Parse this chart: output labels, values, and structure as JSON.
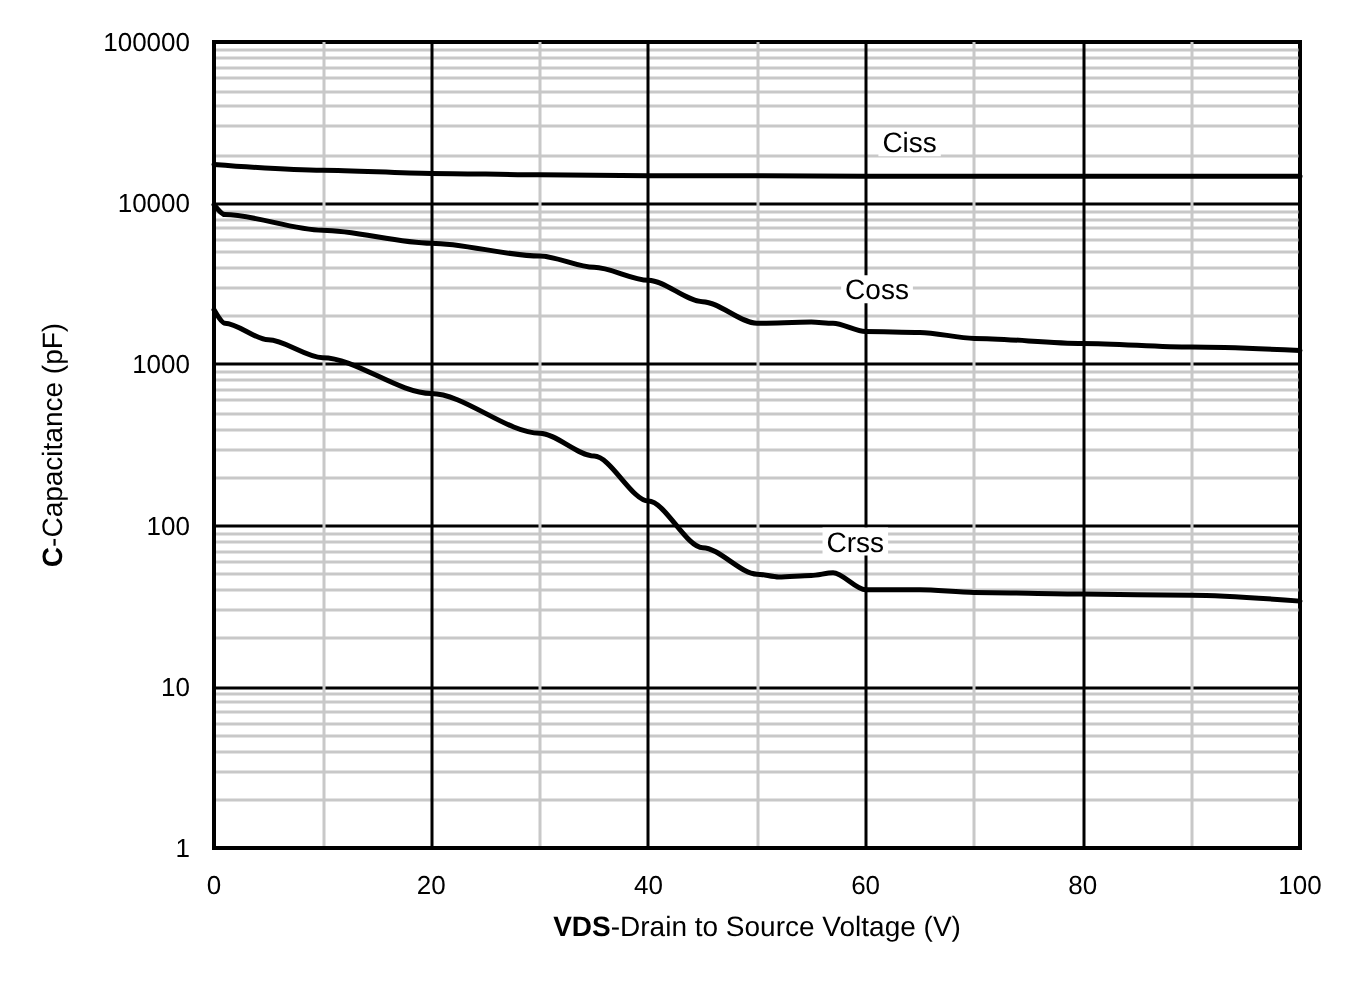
{
  "chart_data": {
    "type": "line",
    "xlabel": "VDS-Drain to Source Voltage (V)",
    "ylabel": "C-Capacitance (pF)",
    "series": [
      {
        "name": "Ciss",
        "color": "#000000",
        "x": [
          0,
          10,
          20,
          30,
          40,
          50,
          60,
          70,
          80,
          90,
          100
        ],
        "values": [
          17400,
          16000,
          15300,
          15000,
          14800,
          14800,
          14700,
          14700,
          14700,
          14700,
          14700
        ]
      },
      {
        "name": "Coss",
        "color": "#000000",
        "x": [
          0,
          1,
          10,
          20,
          30,
          35,
          40,
          45,
          50,
          55,
          57,
          60,
          65,
          70,
          80,
          90,
          100
        ],
        "values": [
          9800,
          8500,
          6800,
          5650,
          4700,
          4000,
          3330,
          2450,
          1800,
          1830,
          1800,
          1600,
          1580,
          1450,
          1350,
          1280,
          1220
        ]
      },
      {
        "name": "Crss",
        "color": "#000000",
        "x": [
          0,
          1,
          5,
          10,
          20,
          30,
          35,
          40,
          45,
          50,
          52,
          55,
          57,
          60,
          65,
          70,
          80,
          90,
          100
        ],
        "values": [
          2180,
          1800,
          1420,
          1100,
          660,
          374,
          270,
          142,
          73,
          50,
          48,
          49,
          51,
          40,
          40,
          38.5,
          37.6,
          37,
          34
        ]
      }
    ],
    "xlim": [
      0,
      100
    ],
    "xticks": [
      0,
      20,
      40,
      60,
      80,
      100
    ],
    "ylim": [
      1,
      100000
    ],
    "yticks": [
      1,
      10,
      100,
      1000,
      10000,
      100000
    ],
    "log": "y",
    "grid": true,
    "legend": false,
    "marker": "none",
    "line_style": "solid"
  }
}
